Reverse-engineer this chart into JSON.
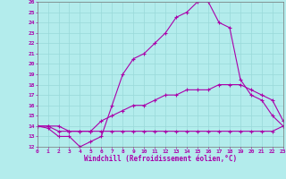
{
  "xlabel": "Windchill (Refroidissement éolien,°C)",
  "x_ticks": [
    0,
    1,
    2,
    3,
    4,
    5,
    6,
    7,
    8,
    9,
    10,
    11,
    12,
    13,
    14,
    15,
    16,
    17,
    18,
    19,
    20,
    21,
    22,
    23
  ],
  "ylim": [
    12,
    26
  ],
  "xlim": [
    0,
    23
  ],
  "yticks": [
    12,
    13,
    14,
    15,
    16,
    17,
    18,
    19,
    20,
    21,
    22,
    23,
    24,
    25,
    26
  ],
  "background_color": "#b3ecec",
  "line_color": "#aa00aa",
  "line1_x": [
    0,
    1,
    2,
    3,
    4,
    5,
    6,
    7,
    8,
    9,
    10,
    11,
    12,
    13,
    14,
    15,
    16,
    17,
    18,
    19,
    20,
    21,
    22,
    23
  ],
  "line1_y": [
    14.0,
    13.8,
    13.0,
    13.0,
    12.0,
    12.5,
    13.0,
    16.0,
    19.0,
    20.5,
    21.0,
    22.0,
    23.0,
    24.5,
    25.0,
    26.0,
    26.0,
    24.0,
    23.5,
    18.5,
    17.0,
    16.5,
    15.0,
    14.0
  ],
  "line2_x": [
    0,
    1,
    2,
    3,
    4,
    5,
    6,
    7,
    8,
    9,
    10,
    11,
    12,
    13,
    14,
    15,
    16,
    17,
    18,
    19,
    20,
    21,
    22,
    23
  ],
  "line2_y": [
    14.0,
    14.0,
    14.0,
    13.5,
    13.5,
    13.5,
    14.5,
    15.0,
    15.5,
    16.0,
    16.0,
    16.5,
    17.0,
    17.0,
    17.5,
    17.5,
    17.5,
    18.0,
    18.0,
    18.0,
    17.5,
    17.0,
    16.5,
    14.5
  ],
  "line3_x": [
    0,
    1,
    2,
    3,
    4,
    5,
    6,
    7,
    8,
    9,
    10,
    11,
    12,
    13,
    14,
    15,
    16,
    17,
    18,
    19,
    20,
    21,
    22,
    23
  ],
  "line3_y": [
    14.0,
    14.0,
    13.5,
    13.5,
    13.5,
    13.5,
    13.5,
    13.5,
    13.5,
    13.5,
    13.5,
    13.5,
    13.5,
    13.5,
    13.5,
    13.5,
    13.5,
    13.5,
    13.5,
    13.5,
    13.5,
    13.5,
    13.5,
    14.0
  ]
}
